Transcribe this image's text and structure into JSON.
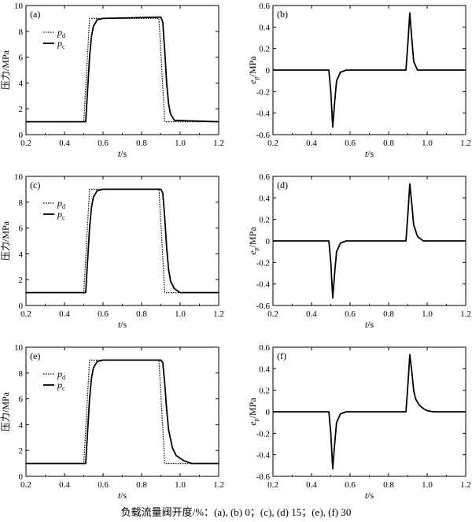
{
  "caption": "负载流量阀开度/%：(a), (b) 0；(c), (d) 15；(e), (f) 30",
  "chart_data": [
    {
      "id": "a",
      "panel_label": "(a)",
      "type": "line",
      "xlabel": "t/s",
      "ylabel": "压力/MPa",
      "xlim": [
        0.2,
        1.2
      ],
      "ylim": [
        0,
        10
      ],
      "xticks": [
        "0.2",
        "0.4",
        "0.6",
        "0.8",
        "1.0",
        "1.2"
      ],
      "yticks": [
        "0",
        "2",
        "4",
        "6",
        "8",
        "10"
      ],
      "legend": {
        "placement": "top-left",
        "entries": [
          "p_d",
          "p_c"
        ]
      },
      "series": [
        {
          "name": "p_d",
          "style": "dotted",
          "x": [
            0.2,
            0.5,
            0.53,
            0.89,
            0.92,
            1.2
          ],
          "y": [
            1.0,
            1.0,
            9.0,
            9.0,
            1.0,
            1.0
          ]
        },
        {
          "name": "p_c",
          "style": "solid",
          "x": [
            0.2,
            0.51,
            0.52,
            0.53,
            0.54,
            0.55,
            0.57,
            0.6,
            0.9,
            0.91,
            0.92,
            0.93,
            0.94,
            0.95,
            0.97,
            1.2
          ],
          "y": [
            1.0,
            1.0,
            3.5,
            6.0,
            7.6,
            8.4,
            8.9,
            9.0,
            9.1,
            8.7,
            6.5,
            4.0,
            2.4,
            1.6,
            1.1,
            1.0
          ]
        }
      ]
    },
    {
      "id": "b",
      "panel_label": "(b)",
      "type": "line",
      "xlabel": "t/s",
      "ylabel": "e_p/MPa",
      "xlim": [
        0.2,
        1.2
      ],
      "ylim": [
        -0.6,
        0.6
      ],
      "xticks": [
        "0.2",
        "0.4",
        "0.6",
        "0.8",
        "1.0",
        "1.2"
      ],
      "yticks": [
        "-0.6",
        "-0.4",
        "-0.2",
        "0",
        "0.2",
        "0.4",
        "0.6"
      ],
      "series": [
        {
          "name": "",
          "style": "solid",
          "x": [
            0.2,
            0.49,
            0.5,
            0.51,
            0.52,
            0.53,
            0.55,
            0.58,
            0.89,
            0.9,
            0.91,
            0.92,
            0.93,
            0.95,
            1.2
          ],
          "y": [
            0.0,
            0.0,
            -0.2,
            -0.53,
            -0.3,
            -0.1,
            -0.02,
            0.0,
            0.0,
            0.25,
            0.53,
            0.3,
            0.08,
            0.0,
            0.0
          ]
        }
      ]
    },
    {
      "id": "c",
      "panel_label": "(c)",
      "type": "line",
      "xlabel": "t/s",
      "ylabel": "压力/MPa",
      "xlim": [
        0.2,
        1.2
      ],
      "ylim": [
        0,
        10
      ],
      "xticks": [
        "0.2",
        "0.4",
        "0.6",
        "0.8",
        "1.0",
        "1.2"
      ],
      "yticks": [
        "0",
        "2",
        "4",
        "6",
        "8",
        "10"
      ],
      "legend": {
        "placement": "top-left",
        "entries": [
          "p_d",
          "p_c"
        ]
      },
      "series": [
        {
          "name": "p_d",
          "style": "dotted",
          "x": [
            0.2,
            0.5,
            0.53,
            0.89,
            0.92,
            1.2
          ],
          "y": [
            1.0,
            1.0,
            9.0,
            9.0,
            1.0,
            1.0
          ]
        },
        {
          "name": "p_c",
          "style": "solid",
          "x": [
            0.2,
            0.51,
            0.52,
            0.53,
            0.54,
            0.55,
            0.57,
            0.6,
            0.9,
            0.91,
            0.92,
            0.93,
            0.94,
            0.95,
            0.97,
            1.0,
            1.2
          ],
          "y": [
            1.0,
            1.0,
            3.5,
            6.0,
            7.6,
            8.4,
            8.9,
            9.0,
            9.0,
            8.7,
            6.8,
            4.5,
            2.8,
            1.9,
            1.3,
            1.0,
            1.0
          ]
        }
      ]
    },
    {
      "id": "d",
      "panel_label": "(d)",
      "type": "line",
      "xlabel": "t/s",
      "ylabel": "e_p/MPa",
      "xlim": [
        0.2,
        1.2
      ],
      "ylim": [
        -0.6,
        0.6
      ],
      "xticks": [
        "0.2",
        "0.4",
        "0.6",
        "0.8",
        "1.0",
        "1.2"
      ],
      "yticks": [
        "-0.6",
        "-0.4",
        "-0.2",
        "0",
        "0.2",
        "0.4",
        "0.6"
      ],
      "series": [
        {
          "name": "",
          "style": "solid",
          "x": [
            0.2,
            0.49,
            0.5,
            0.51,
            0.52,
            0.53,
            0.55,
            0.58,
            0.89,
            0.9,
            0.91,
            0.92,
            0.93,
            0.95,
            0.98,
            1.2
          ],
          "y": [
            0.0,
            0.0,
            -0.2,
            -0.53,
            -0.3,
            -0.1,
            -0.02,
            0.0,
            0.0,
            0.25,
            0.53,
            0.35,
            0.15,
            0.04,
            0.0,
            0.0
          ]
        }
      ]
    },
    {
      "id": "e",
      "panel_label": "(e)",
      "type": "line",
      "xlabel": "t/s",
      "ylabel": "压力/MPa",
      "xlim": [
        0.2,
        1.2
      ],
      "ylim": [
        0,
        10
      ],
      "xticks": [
        "0.2",
        "0.4",
        "0.6",
        "0.8",
        "1.0",
        "1.2"
      ],
      "yticks": [
        "0",
        "2",
        "4",
        "6",
        "8",
        "10"
      ],
      "legend": {
        "placement": "top-left",
        "entries": [
          "p_d",
          "p_c"
        ]
      },
      "series": [
        {
          "name": "p_d",
          "style": "dotted",
          "x": [
            0.2,
            0.5,
            0.53,
            0.89,
            0.92,
            1.2
          ],
          "y": [
            1.0,
            1.0,
            9.0,
            9.0,
            1.0,
            1.0
          ]
        },
        {
          "name": "p_c",
          "style": "solid",
          "x": [
            0.2,
            0.51,
            0.52,
            0.53,
            0.54,
            0.55,
            0.57,
            0.6,
            0.9,
            0.91,
            0.92,
            0.93,
            0.94,
            0.96,
            0.98,
            1.02,
            1.06,
            1.2
          ],
          "y": [
            1.0,
            1.0,
            3.5,
            6.0,
            7.6,
            8.4,
            8.9,
            9.0,
            9.0,
            8.8,
            7.2,
            5.2,
            3.6,
            2.2,
            1.6,
            1.2,
            1.0,
            1.0
          ]
        }
      ]
    },
    {
      "id": "f",
      "panel_label": "(f)",
      "type": "line",
      "xlabel": "t/s",
      "ylabel": "e_p/MPa",
      "xlim": [
        0.2,
        1.2
      ],
      "ylim": [
        -0.6,
        0.6
      ],
      "xticks": [
        "0.2",
        "0.4",
        "0.6",
        "0.8",
        "1.0",
        "1.2"
      ],
      "yticks": [
        "-0.6",
        "-0.4",
        "-0.2",
        "0",
        "0.2",
        "0.4",
        "0.6"
      ],
      "series": [
        {
          "name": "",
          "style": "solid",
          "x": [
            0.2,
            0.49,
            0.5,
            0.51,
            0.52,
            0.53,
            0.55,
            0.58,
            0.89,
            0.9,
            0.91,
            0.92,
            0.93,
            0.94,
            0.96,
            0.98,
            1.0,
            1.03,
            1.2
          ],
          "y": [
            0.0,
            0.0,
            -0.2,
            -0.53,
            -0.3,
            -0.1,
            -0.02,
            0.0,
            0.0,
            0.25,
            0.53,
            0.38,
            0.2,
            0.12,
            0.06,
            0.03,
            0.01,
            0.0,
            0.0
          ]
        }
      ]
    }
  ]
}
